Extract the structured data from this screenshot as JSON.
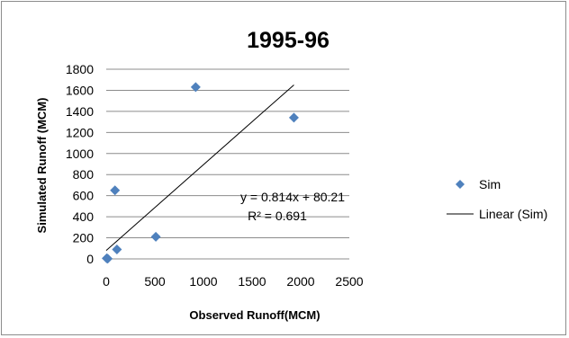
{
  "chart_data": {
    "type": "scatter",
    "title": "1995-96",
    "xlabel": "Observed Runoff(MCM)",
    "ylabel": "Simulated Runoff (MCM)",
    "xlim": [
      0,
      2500
    ],
    "ylim": [
      0,
      1800
    ],
    "xticks": [
      0,
      500,
      1000,
      1500,
      2000,
      2500
    ],
    "yticks": [
      0,
      200,
      400,
      600,
      800,
      1000,
      1200,
      1400,
      1600,
      1800
    ],
    "grid": "horizontal",
    "legend_position": "right",
    "series": [
      {
        "name": "Sim",
        "marker": "diamond",
        "color": "#4f81bd",
        "points": [
          {
            "x": 5,
            "y": 5
          },
          {
            "x": 15,
            "y": 2
          },
          {
            "x": 90,
            "y": 650
          },
          {
            "x": 110,
            "y": 90
          },
          {
            "x": 510,
            "y": 210
          },
          {
            "x": 920,
            "y": 1630
          },
          {
            "x": 1930,
            "y": 1340
          }
        ]
      }
    ],
    "trendline": {
      "name": "Linear (Sim)",
      "type": "linear",
      "slope": 0.814,
      "intercept": 80.21,
      "x_range": [
        0,
        1930
      ],
      "color": "#000000",
      "equation_text": "y = 0.814x + 80.21",
      "r2_text": "R² = 0.691"
    }
  }
}
